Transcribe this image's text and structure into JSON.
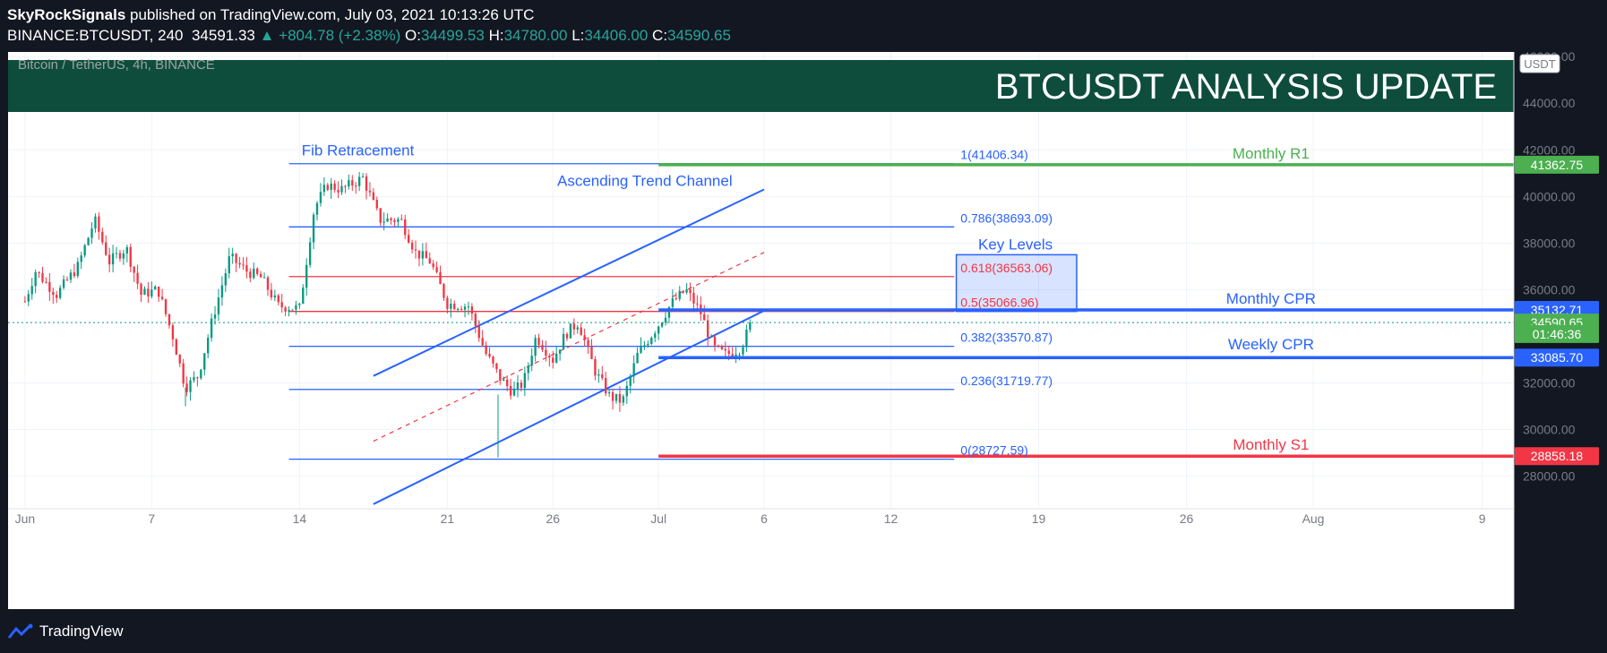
{
  "header": {
    "publisher": "SkyRockSignals",
    "published_text": "published on TradingView.com, July 03, 2021 10:13:26 UTC",
    "symbol": "BINANCE:BTCUSDT, 240",
    "last": "34591.33",
    "change": "▲ +804.78 (+2.38%)",
    "o_label": "O:",
    "o_val": "34499.53",
    "h_label": "H:",
    "h_val": "34780.00",
    "l_label": "L:",
    "l_val": "34406.00",
    "c_label": "C:",
    "c_val": "34590.65"
  },
  "footer": {
    "brand": "TradingView"
  },
  "colors": {
    "background": "#131722",
    "chart_bg": "#ffffff",
    "banner": "#0e4d3c",
    "up": "#26a69a",
    "up_candle": "#089981",
    "down_candle": "#f23645",
    "blue": "#2962ff",
    "green": "#4caf50",
    "red": "#f23645"
  },
  "chart_data": {
    "type": "candlestick",
    "symbol_label": "Bitcoin / TetherUS, 4h, BINANCE",
    "banner_title": "BTCUSDT ANALYSIS UPDATE",
    "currency": "USDT",
    "x_ticks": [
      "Jun",
      "7",
      "14",
      "21",
      "26",
      "Jul",
      "6",
      "12",
      "19",
      "26",
      "Aug",
      "9"
    ],
    "y_ticks": [
      "46000.00",
      "44000.00",
      "42000.00",
      "40000.00",
      "38000.00",
      "36000.00",
      "32000.00",
      "30000.00",
      "28000.00"
    ],
    "ylim": [
      26600,
      46200
    ],
    "x_range_days": [
      -0.8,
      70.5
    ],
    "annotations": {
      "fib_title": "Fib Retracement",
      "channel_title": "Ascending Trend Channel",
      "key_levels": "Key Levels",
      "monthly_r1": "Monthly R1",
      "monthly_cpr": "Monthly CPR",
      "weekly_cpr": "Weekly CPR",
      "monthly_s1": "Monthly S1"
    },
    "fib_levels": [
      {
        "label": "1(41406.34)",
        "value": 41406.34,
        "color": "#2962ff"
      },
      {
        "label": "0.786(38693.09)",
        "value": 38693.09,
        "color": "#2962ff"
      },
      {
        "label": "0.618(36563.06)",
        "value": 36563.06,
        "color": "#f23645"
      },
      {
        "label": "0.5(35066.96)",
        "value": 35066.96,
        "color": "#f23645"
      },
      {
        "label": "0.382(33570.87)",
        "value": 33570.87,
        "color": "#2962ff"
      },
      {
        "label": "0.236(31719.77)",
        "value": 31719.77,
        "color": "#2962ff"
      },
      {
        "label": "0(28727.59)",
        "value": 28727.59,
        "color": "#2962ff"
      }
    ],
    "price_labels": [
      {
        "text": "41362.75",
        "value": 41362.75,
        "color": "#4caf50"
      },
      {
        "text": "35132.71",
        "value": 35132.71,
        "color": "#2962ff"
      },
      {
        "text": "34590.65",
        "value": 34590.65,
        "color": "#4caf50"
      },
      {
        "text": "01:46:36",
        "value": 34100,
        "color": "#4caf50"
      },
      {
        "text": "33085.70",
        "value": 33085.7,
        "color": "#2962ff"
      },
      {
        "text": "28858.18",
        "value": 28858.18,
        "color": "#f23645"
      }
    ],
    "pivot_lines": [
      {
        "name": "Monthly R1",
        "value": 41362.75,
        "color": "#4caf50"
      },
      {
        "name": "Monthly CPR",
        "value": 35132.71,
        "color": "#2962ff"
      },
      {
        "name": "Weekly CPR",
        "value": 33085.7,
        "color": "#2962ff"
      },
      {
        "name": "Monthly S1",
        "value": 28858.18,
        "color": "#f23645"
      }
    ],
    "key_zone": {
      "from": 35066.96,
      "to": 37500
    },
    "channel": {
      "upper": [
        [
          16.5,
          32300
        ],
        [
          35.0,
          40300
        ]
      ],
      "lower": [
        [
          16.5,
          26800
        ],
        [
          35.0,
          35100
        ]
      ],
      "mid": [
        [
          16.5,
          29500
        ],
        [
          35.0,
          37600
        ]
      ]
    },
    "last_price": 34590.65,
    "ohlc_keypoints": [
      [
        0,
        35500
      ],
      [
        0.5,
        36800
      ],
      [
        1.5,
        35800
      ],
      [
        2.5,
        37000
      ],
      [
        3.3,
        39000
      ],
      [
        4.0,
        37200
      ],
      [
        4.8,
        37800
      ],
      [
        5.5,
        35800
      ],
      [
        6.3,
        36000
      ],
      [
        7.0,
        34000
      ],
      [
        7.6,
        31800
      ],
      [
        8.2,
        32300
      ],
      [
        8.9,
        34800
      ],
      [
        9.7,
        37400
      ],
      [
        10.5,
        36800
      ],
      [
        11.2,
        36500
      ],
      [
        12.0,
        35300
      ],
      [
        13.0,
        35200
      ],
      [
        13.7,
        39500
      ],
      [
        14.3,
        40500
      ],
      [
        15.0,
        40300
      ],
      [
        16.0,
        40800
      ],
      [
        16.8,
        39000
      ],
      [
        17.8,
        39000
      ],
      [
        18.5,
        37600
      ],
      [
        19.2,
        37200
      ],
      [
        20.0,
        35400
      ],
      [
        21.0,
        35300
      ],
      [
        21.8,
        33300
      ],
      [
        22.5,
        32200
      ],
      [
        23.1,
        31600
      ],
      [
        23.6,
        32000
      ],
      [
        24.2,
        34000
      ],
      [
        25.0,
        33000
      ],
      [
        25.6,
        34100
      ],
      [
        26.2,
        34600
      ],
      [
        27.0,
        32500
      ],
      [
        27.7,
        31400
      ],
      [
        28.3,
        31200
      ],
      [
        29.0,
        33200
      ],
      [
        30.0,
        34500
      ],
      [
        30.6,
        35400
      ],
      [
        31.3,
        36000
      ],
      [
        32.0,
        35000
      ],
      [
        32.6,
        33500
      ],
      [
        33.2,
        33200
      ],
      [
        33.9,
        33500
      ],
      [
        34.4,
        34590
      ]
    ]
  }
}
